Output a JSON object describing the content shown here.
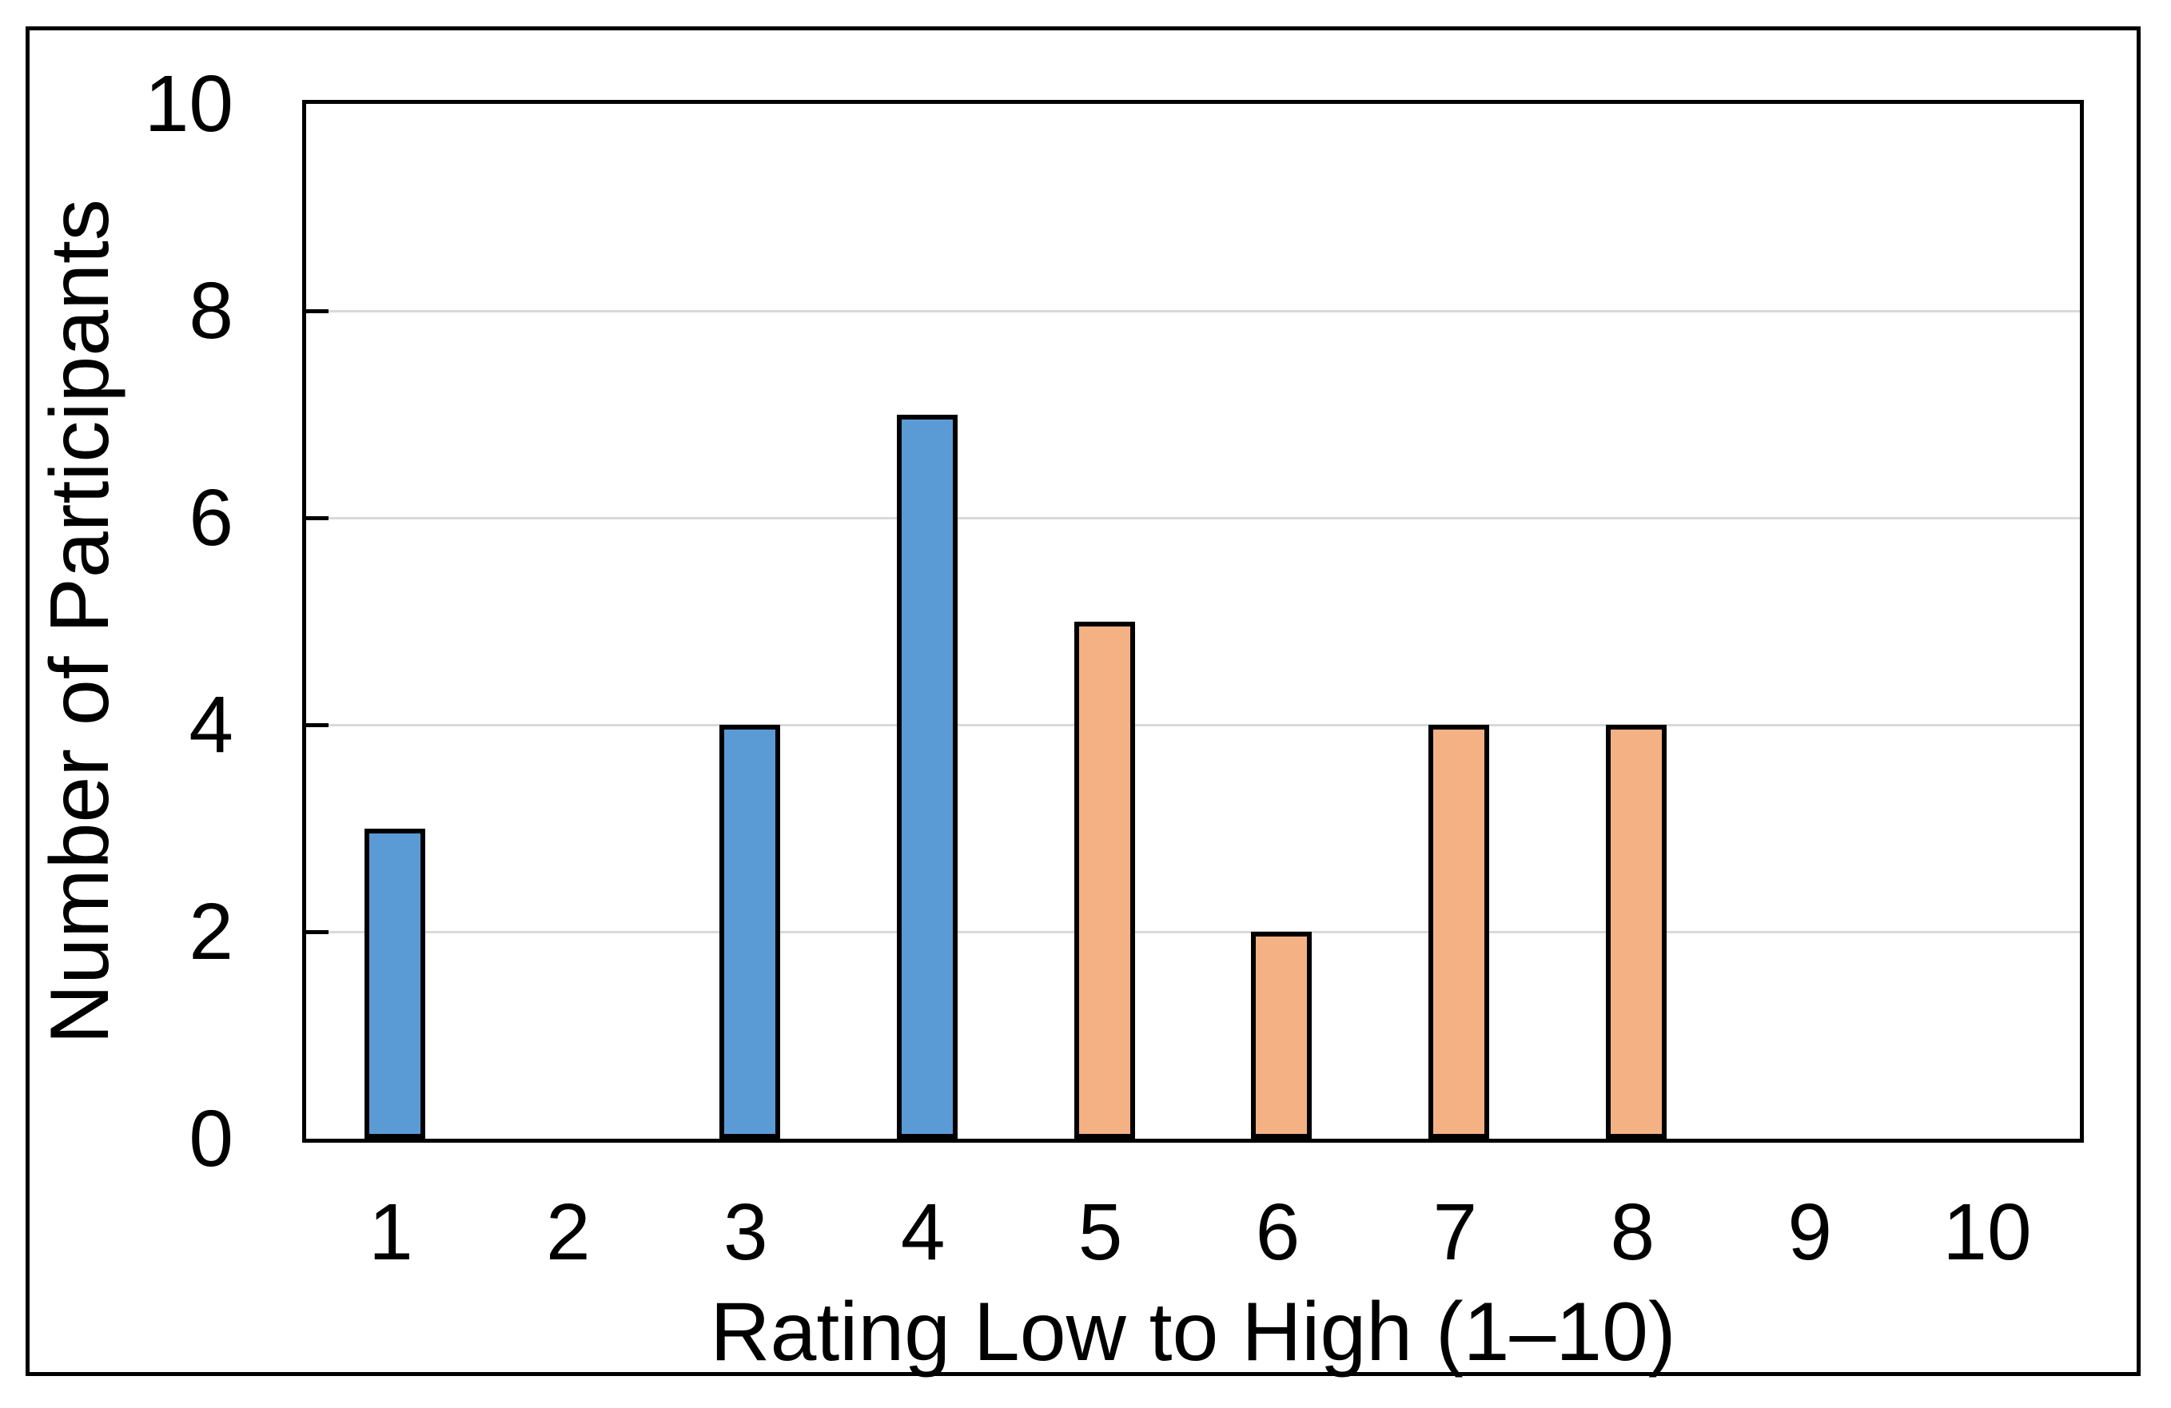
{
  "figure": {
    "background_color": "#FFFFFF",
    "border_color": "#000000"
  },
  "chart_data": {
    "type": "bar",
    "title": "",
    "xlabel": "Rating Low to High (1–10)",
    "ylabel": "Number of Participants",
    "categories": [
      "1",
      "2",
      "3",
      "4",
      "5",
      "6",
      "7",
      "8",
      "9",
      "10"
    ],
    "values": [
      3,
      0,
      4,
      7,
      5,
      2,
      4,
      4,
      0,
      0
    ],
    "bar_colors": [
      "#5B9BD5",
      "#5B9BD5",
      "#5B9BD5",
      "#5B9BD5",
      "#F4B183",
      "#F4B183",
      "#F4B183",
      "#F4B183",
      "#F4B183",
      "#F4B183"
    ],
    "bar_outline_color": "#000000",
    "ylim": [
      0,
      10
    ],
    "yticks": [
      0,
      2,
      4,
      6,
      8,
      10
    ],
    "ytick_labels": [
      "0",
      "2",
      "4",
      "6",
      "8",
      "10"
    ],
    "grid": true,
    "gridline_color": "#D9D9D9",
    "axis_color": "#000000",
    "legend_position": "none"
  }
}
